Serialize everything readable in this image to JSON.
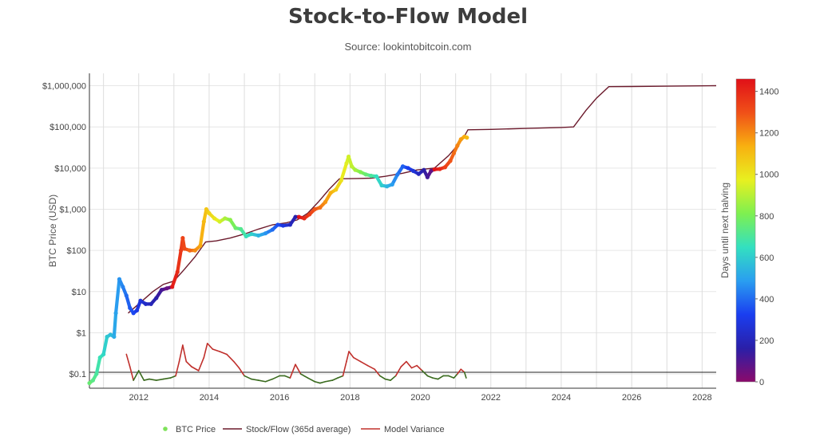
{
  "chart_data": {
    "type": "scatter",
    "title": "Stock-to-Flow Model",
    "subtitle": "Source: lookintobitcoin.com",
    "ylabel": "BTC Price (USD)",
    "xlabel": "",
    "yscale": "log",
    "ylim": [
      0.045,
      2000000
    ],
    "xlim": [
      2010.6,
      2028.4
    ],
    "x_ticks": [
      2012,
      2014,
      2016,
      2018,
      2020,
      2022,
      2024,
      2026,
      2028
    ],
    "x_tick_labels": [
      "2012",
      "2014",
      "2016",
      "2018",
      "2020",
      "2022",
      "2024",
      "2026",
      "2028"
    ],
    "y_ticks": [
      0.1,
      1,
      10,
      100,
      1000,
      10000,
      100000,
      1000000
    ],
    "y_tick_labels": [
      "$0.1",
      "$1",
      "$10",
      "$100",
      "$1,000",
      "$10,000",
      "$100,000",
      "$1,000,000"
    ],
    "reference_line_y": 0.11,
    "grid": true,
    "legend_position": "bottom-center",
    "colorbar": {
      "label": "Days until next halving",
      "range": [
        0,
        1460
      ],
      "ticks": [
        0,
        200,
        400,
        600,
        800,
        1000,
        1200,
        1400
      ],
      "tick_labels": [
        "0",
        "200",
        "400",
        "600",
        "800",
        "1000",
        "1200",
        "1400"
      ],
      "colorscale": [
        "#8b0a6b",
        "#2a1fa8",
        "#1a3ef0",
        "#2a9ef0",
        "#33e0c0",
        "#7ef050",
        "#e8f020",
        "#f8b010",
        "#f05018",
        "#e01018"
      ]
    },
    "series": [
      {
        "name": "BTC Price",
        "kind": "scatter",
        "color_by": "days_until_next_halving",
        "legend_color": "#7ee25a",
        "points": [
          [
            2010.6,
            0.06,
            760
          ],
          [
            2010.7,
            0.07,
            730
          ],
          [
            2010.8,
            0.1,
            700
          ],
          [
            2010.9,
            0.25,
            660
          ],
          [
            2011.0,
            0.3,
            630
          ],
          [
            2011.1,
            0.8,
            590
          ],
          [
            2011.2,
            0.9,
            560
          ],
          [
            2011.3,
            0.8,
            520
          ],
          [
            2011.35,
            3.0,
            500
          ],
          [
            2011.45,
            20.0,
            470
          ],
          [
            2011.55,
            13.0,
            440
          ],
          [
            2011.65,
            8.0,
            400
          ],
          [
            2011.75,
            4.0,
            370
          ],
          [
            2011.85,
            3.0,
            340
          ],
          [
            2011.95,
            3.5,
            300
          ],
          [
            2012.05,
            6.0,
            270
          ],
          [
            2012.2,
            5.0,
            230
          ],
          [
            2012.35,
            5.0,
            200
          ],
          [
            2012.5,
            7.0,
            160
          ],
          [
            2012.65,
            11.0,
            110
          ],
          [
            2012.8,
            12.0,
            60
          ],
          [
            2012.95,
            13.0,
            1440
          ],
          [
            2013.1,
            30.0,
            1390
          ],
          [
            2013.2,
            100.0,
            1350
          ],
          [
            2013.25,
            200.0,
            1330
          ],
          [
            2013.3,
            110.0,
            1310
          ],
          [
            2013.45,
            100.0,
            1260
          ],
          [
            2013.6,
            100.0,
            1200
          ],
          [
            2013.75,
            130.0,
            1150
          ],
          [
            2013.85,
            500.0,
            1110
          ],
          [
            2013.92,
            1000.0,
            1080
          ],
          [
            2014.0,
            800.0,
            1050
          ],
          [
            2014.15,
            600.0,
            1000
          ],
          [
            2014.3,
            500.0,
            940
          ],
          [
            2014.45,
            600.0,
            880
          ],
          [
            2014.6,
            550.0,
            830
          ],
          [
            2014.75,
            350.0,
            770
          ],
          [
            2014.9,
            330.0,
            720
          ],
          [
            2015.05,
            220.0,
            660
          ],
          [
            2015.2,
            250.0,
            610
          ],
          [
            2015.4,
            230.0,
            540
          ],
          [
            2015.6,
            260.0,
            470
          ],
          [
            2015.8,
            320.0,
            400
          ],
          [
            2015.95,
            420.0,
            350
          ],
          [
            2016.1,
            400.0,
            290
          ],
          [
            2016.3,
            420.0,
            220
          ],
          [
            2016.45,
            650.0,
            170
          ],
          [
            2016.55,
            650.0,
            1450
          ],
          [
            2016.7,
            600.0,
            1400
          ],
          [
            2016.85,
            750.0,
            1340
          ],
          [
            2017.0,
            1000.0,
            1290
          ],
          [
            2017.15,
            1100.0,
            1240
          ],
          [
            2017.3,
            1500.0,
            1180
          ],
          [
            2017.45,
            2500.0,
            1130
          ],
          [
            2017.6,
            3000.0,
            1070
          ],
          [
            2017.75,
            5000.0,
            1010
          ],
          [
            2017.9,
            13000.0,
            960
          ],
          [
            2017.96,
            19000.0,
            940
          ],
          [
            2018.05,
            11000.0,
            910
          ],
          [
            2018.15,
            9000.0,
            870
          ],
          [
            2018.3,
            8000.0,
            810
          ],
          [
            2018.45,
            7000.0,
            760
          ],
          [
            2018.6,
            6500.0,
            700
          ],
          [
            2018.75,
            6300.0,
            650
          ],
          [
            2018.9,
            3800.0,
            600
          ],
          [
            2019.05,
            3600.0,
            540
          ],
          [
            2019.2,
            4000.0,
            490
          ],
          [
            2019.35,
            7000.0,
            430
          ],
          [
            2019.5,
            11000.0,
            380
          ],
          [
            2019.65,
            10000.0,
            320
          ],
          [
            2019.8,
            8500.0,
            270
          ],
          [
            2019.95,
            7200.0,
            210
          ],
          [
            2020.1,
            9000.0,
            160
          ],
          [
            2020.2,
            6000.0,
            120
          ],
          [
            2020.3,
            8500.0,
            70
          ],
          [
            2020.4,
            9300.0,
            1450
          ],
          [
            2020.55,
            9500.0,
            1400
          ],
          [
            2020.7,
            10500.0,
            1340
          ],
          [
            2020.85,
            15000.0,
            1290
          ],
          [
            2020.95,
            23000.0,
            1250
          ],
          [
            2021.05,
            35000.0,
            1210
          ],
          [
            2021.15,
            50000.0,
            1170
          ],
          [
            2021.25,
            58000.0,
            1140
          ],
          [
            2021.32,
            55000.0,
            1110
          ]
        ]
      },
      {
        "name": "Stock/Flow (365d average)",
        "kind": "line",
        "color": "#6b1a2c",
        "points": [
          [
            2011.7,
            3.0
          ],
          [
            2012.0,
            5.0
          ],
          [
            2012.4,
            10.0
          ],
          [
            2012.7,
            15.0
          ],
          [
            2013.0,
            18.0
          ],
          [
            2013.3,
            35.0
          ],
          [
            2013.6,
            70.0
          ],
          [
            2013.9,
            160.0
          ],
          [
            2014.2,
            170.0
          ],
          [
            2014.6,
            200.0
          ],
          [
            2015.0,
            250.0
          ],
          [
            2015.4,
            330.0
          ],
          [
            2015.8,
            420.0
          ],
          [
            2016.2,
            470.0
          ],
          [
            2016.5,
            550.0
          ],
          [
            2016.8,
            800.0
          ],
          [
            2017.1,
            1500.0
          ],
          [
            2017.4,
            3000.0
          ],
          [
            2017.7,
            5500.0
          ],
          [
            2018.2,
            5600.0
          ],
          [
            2018.6,
            5700.0
          ],
          [
            2019.0,
            6300.0
          ],
          [
            2019.5,
            7500.0
          ],
          [
            2019.9,
            9000.0
          ],
          [
            2020.4,
            10000.0
          ],
          [
            2020.8,
            20000.0
          ],
          [
            2021.2,
            50000.0
          ],
          [
            2021.35,
            85000.0
          ],
          [
            2022.0,
            87000.0
          ],
          [
            2023.0,
            92000.0
          ],
          [
            2024.0,
            97000.0
          ],
          [
            2024.35,
            100000.0
          ],
          [
            2024.7,
            250000.0
          ],
          [
            2025.0,
            500000.0
          ],
          [
            2025.35,
            950000.0
          ],
          [
            2026.0,
            960000.0
          ],
          [
            2027.0,
            975000.0
          ],
          [
            2028.4,
            1000000.0
          ]
        ]
      },
      {
        "name": "Model Variance",
        "kind": "line",
        "color_above": "#c0302c",
        "color_below": "#3a6b1e",
        "points": [
          [
            2011.65,
            0.3
          ],
          [
            2011.75,
            0.15
          ],
          [
            2011.85,
            0.07
          ],
          [
            2012.0,
            0.12
          ],
          [
            2012.15,
            0.07
          ],
          [
            2012.3,
            0.075
          ],
          [
            2012.5,
            0.07
          ],
          [
            2012.7,
            0.075
          ],
          [
            2012.9,
            0.08
          ],
          [
            2013.05,
            0.09
          ],
          [
            2013.15,
            0.2
          ],
          [
            2013.25,
            0.5
          ],
          [
            2013.35,
            0.2
          ],
          [
            2013.5,
            0.15
          ],
          [
            2013.7,
            0.12
          ],
          [
            2013.85,
            0.25
          ],
          [
            2013.95,
            0.55
          ],
          [
            2014.1,
            0.4
          ],
          [
            2014.3,
            0.35
          ],
          [
            2014.5,
            0.3
          ],
          [
            2014.7,
            0.2
          ],
          [
            2014.85,
            0.14
          ],
          [
            2015.0,
            0.09
          ],
          [
            2015.2,
            0.075
          ],
          [
            2015.4,
            0.07
          ],
          [
            2015.6,
            0.065
          ],
          [
            2015.8,
            0.075
          ],
          [
            2016.0,
            0.09
          ],
          [
            2016.15,
            0.09
          ],
          [
            2016.3,
            0.08
          ],
          [
            2016.45,
            0.17
          ],
          [
            2016.6,
            0.1
          ],
          [
            2016.8,
            0.08
          ],
          [
            2017.0,
            0.065
          ],
          [
            2017.15,
            0.06
          ],
          [
            2017.3,
            0.065
          ],
          [
            2017.5,
            0.07
          ],
          [
            2017.65,
            0.08
          ],
          [
            2017.8,
            0.09
          ],
          [
            2017.9,
            0.2
          ],
          [
            2017.97,
            0.35
          ],
          [
            2018.1,
            0.25
          ],
          [
            2018.3,
            0.2
          ],
          [
            2018.5,
            0.16
          ],
          [
            2018.7,
            0.13
          ],
          [
            2018.85,
            0.09
          ],
          [
            2019.0,
            0.075
          ],
          [
            2019.15,
            0.07
          ],
          [
            2019.3,
            0.09
          ],
          [
            2019.45,
            0.15
          ],
          [
            2019.6,
            0.2
          ],
          [
            2019.75,
            0.14
          ],
          [
            2019.9,
            0.16
          ],
          [
            2020.05,
            0.12
          ],
          [
            2020.2,
            0.09
          ],
          [
            2020.35,
            0.08
          ],
          [
            2020.5,
            0.075
          ],
          [
            2020.65,
            0.09
          ],
          [
            2020.8,
            0.09
          ],
          [
            2020.95,
            0.08
          ],
          [
            2021.05,
            0.1
          ],
          [
            2021.15,
            0.13
          ],
          [
            2021.25,
            0.11
          ],
          [
            2021.3,
            0.08
          ]
        ]
      }
    ]
  },
  "legend": {
    "items": [
      {
        "label": "BTC Price",
        "marker": "dot",
        "color": "#7ee25a"
      },
      {
        "label": "Stock/Flow (365d average)",
        "marker": "line",
        "color": "#6b1a2c"
      },
      {
        "label": "Model Variance",
        "marker": "line",
        "color": "#c0302c"
      }
    ]
  }
}
